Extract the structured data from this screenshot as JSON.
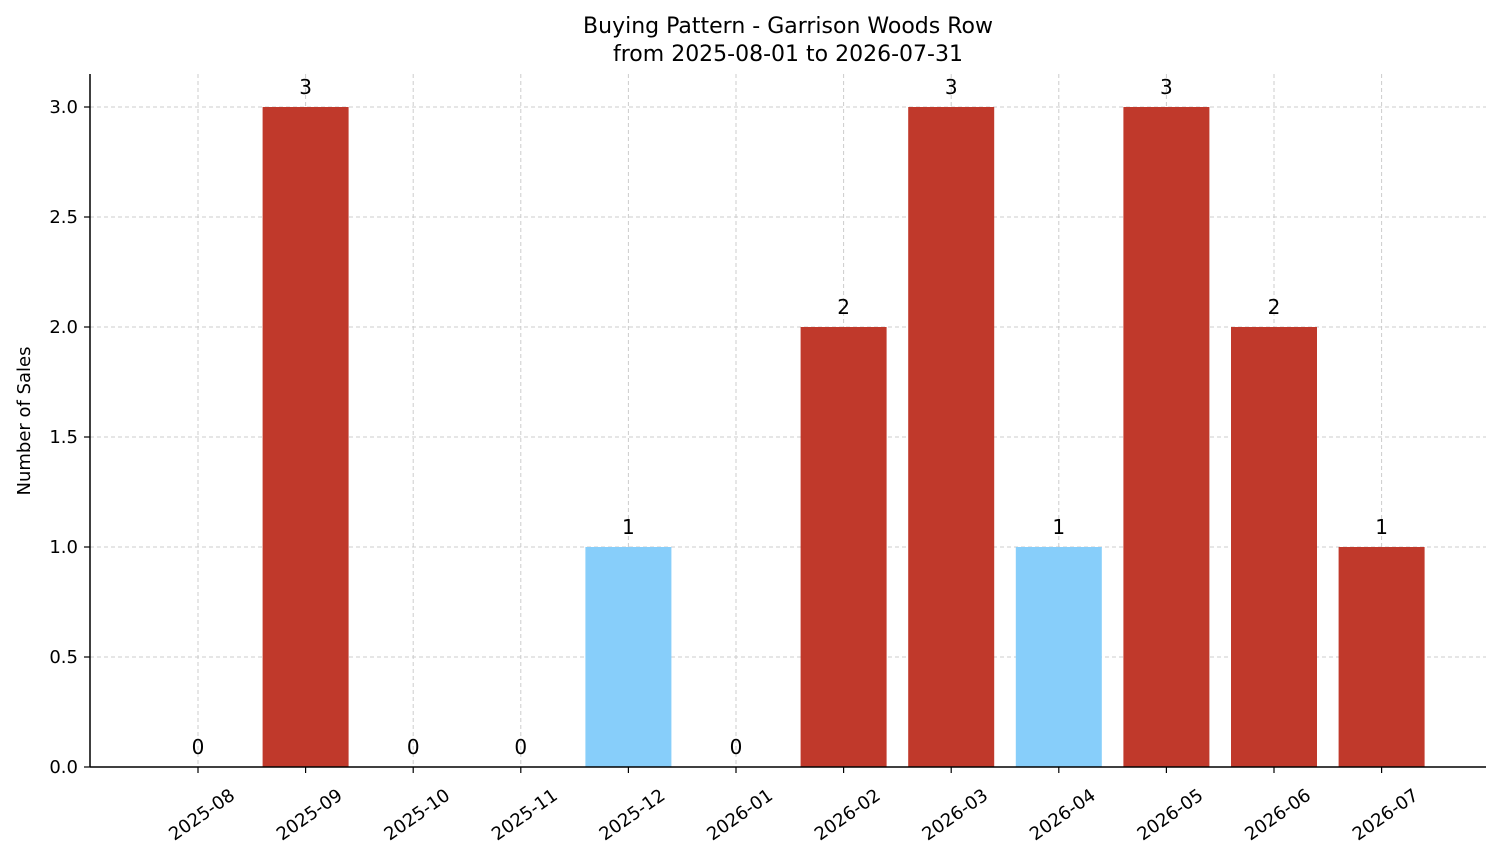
{
  "chart_data": {
    "type": "bar",
    "title": "Buying Pattern - Garrison Woods Row",
    "subtitle": "from 2025-08-01 to 2026-07-31",
    "xlabel": "",
    "ylabel": "Number of Sales",
    "ylim": [
      0,
      3.15
    ],
    "yticks": [
      "0.0",
      "0.5",
      "1.0",
      "1.5",
      "2.0",
      "2.5",
      "3.0"
    ],
    "grid": true,
    "categories": [
      "2025-08",
      "2025-09",
      "2025-10",
      "2025-11",
      "2025-12",
      "2026-01",
      "2026-02",
      "2026-03",
      "2026-04",
      "2026-05",
      "2026-06",
      "2026-07"
    ],
    "values": [
      0,
      3,
      0,
      0,
      1,
      0,
      2,
      3,
      1,
      3,
      2,
      1
    ],
    "data_labels": [
      "0",
      "3",
      "0",
      "0",
      "1",
      "0",
      "2",
      "3",
      "1",
      "3",
      "2",
      "1"
    ],
    "bar_colors": [
      "#c0392b",
      "#c0392b",
      "#c0392b",
      "#c0392b",
      "#87cefa",
      "#c0392b",
      "#c0392b",
      "#c0392b",
      "#87cefa",
      "#c0392b",
      "#c0392b",
      "#c0392b"
    ]
  }
}
